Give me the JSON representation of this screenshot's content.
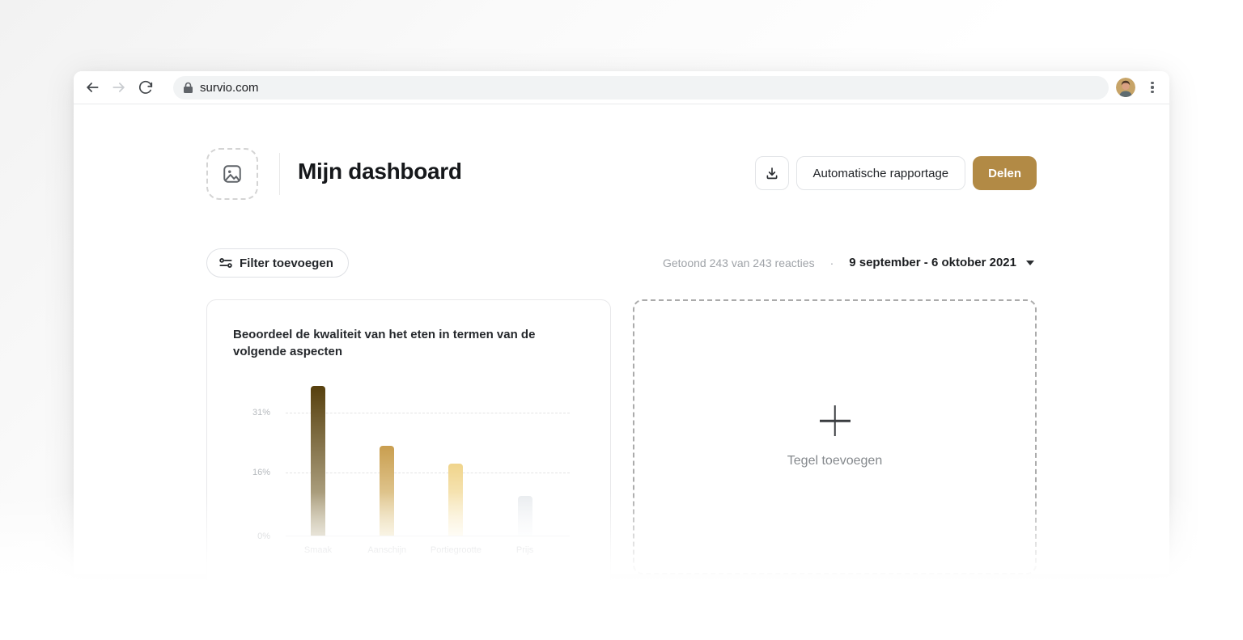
{
  "browser": {
    "url": "survio.com"
  },
  "header": {
    "title": "Mijn dashboard",
    "actions": {
      "auto_report_label": "Automatische rapportage",
      "share_label": "Delen",
      "share_color": "#b28a45"
    }
  },
  "filter_bar": {
    "add_filter_label": "Filter toevoegen",
    "shown_text": "Getoond 243 van 243 reacties",
    "separator": "·",
    "date_range": "9 september - 6 oktober 2021"
  },
  "chart_card": {
    "title": "Beoordeel de kwaliteit van het eten in termen van de volgende aspecten"
  },
  "chart_data": {
    "type": "bar",
    "title": "Beoordeel de kwaliteit van het eten in termen van de volgende aspecten",
    "categories": [
      "Smaak",
      "Aanschijn",
      "Portiegrootte",
      "Prijs"
    ],
    "values": [
      37.5,
      22.5,
      18,
      10
    ],
    "unit": "%",
    "yticks": [
      0,
      16,
      31
    ],
    "ylim": [
      0,
      41
    ],
    "xlabel": "",
    "ylabel": "",
    "grid": "horizontal-dashed",
    "legend": "none",
    "bar_gradients": [
      [
        "#57400e",
        "#cbc2a8"
      ],
      [
        "#c99e4f",
        "#f2e6c3"
      ],
      [
        "#f0d48b",
        "#fdf8e8"
      ],
      [
        "#e9ecef",
        "#fbfcfd"
      ]
    ]
  },
  "add_tile": {
    "label": "Tegel toevoegen"
  }
}
